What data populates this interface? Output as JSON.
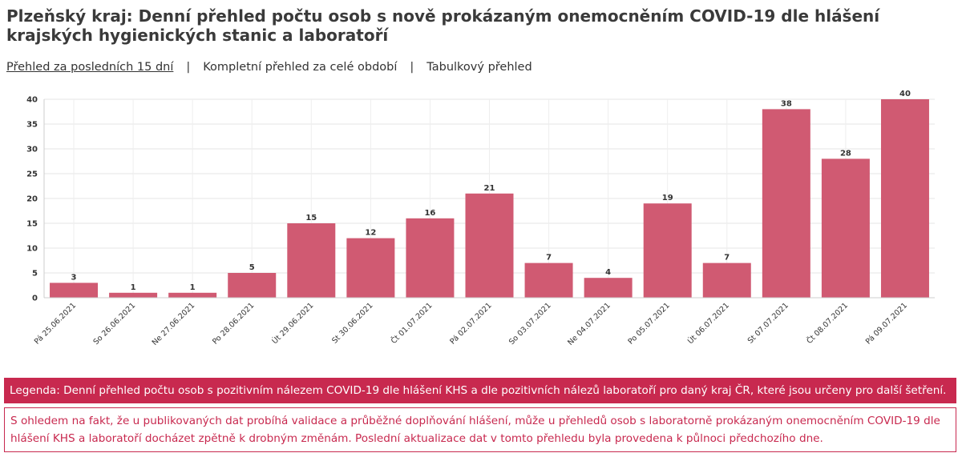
{
  "page": {
    "title": "Plzeňský kraj: Denní přehled počtu osob s nově prokázaným onemocněním COVID-19 dle hlášení krajských hygienických stanic a laboratoří"
  },
  "tabs": [
    {
      "label": "Přehled za posledních 15 dní",
      "active": true
    },
    {
      "label": "Kompletní přehled za celé období",
      "active": false
    },
    {
      "label": "Tabulkový přehled",
      "active": false
    }
  ],
  "tab_separator": "|",
  "chart_data": {
    "type": "bar",
    "categories": [
      "Pá 25.06.2021",
      "So 26.06.2021",
      "Ne 27.06.2021",
      "Po 28.06.2021",
      "Út 29.06.2021",
      "St 30.06.2021",
      "Čt 01.07.2021",
      "Pá 02.07.2021",
      "So 03.07.2021",
      "Ne 04.07.2021",
      "Po 05.07.2021",
      "Út 06.07.2021",
      "St 07.07.2021",
      "Čt 08.07.2021",
      "Pá 09.07.2021"
    ],
    "values": [
      3,
      1,
      1,
      5,
      15,
      12,
      16,
      21,
      7,
      4,
      19,
      7,
      38,
      28,
      40
    ],
    "ylim": [
      0,
      40
    ],
    "yticks": [
      0,
      5,
      10,
      15,
      20,
      25,
      30,
      35,
      40
    ],
    "grid": true,
    "bar_color": "#d05a72",
    "title": "",
    "xlabel": "",
    "ylabel": ""
  },
  "legend_text": "Legenda: Denní přehled počtu osob s pozitivním nálezem COVID-19 dle hlášení KHS a dle pozitivních nálezů laboratoří pro daný kraj ČR, které jsou určeny pro další šetření.",
  "note_text": "S ohledem na fakt, že u publikovaných dat probíhá validace a průběžné doplňování hlášení, může u přehledů osob s laboratorně prokázaným onemocněním COVID-19 dle hlášení KHS a laboratoří docházet zpětně k drobným změnám. Poslední aktualizace dat v tomto přehledu byla provedena k půlnoci předchozího dne.",
  "colors": {
    "accent": "#c8294f"
  }
}
